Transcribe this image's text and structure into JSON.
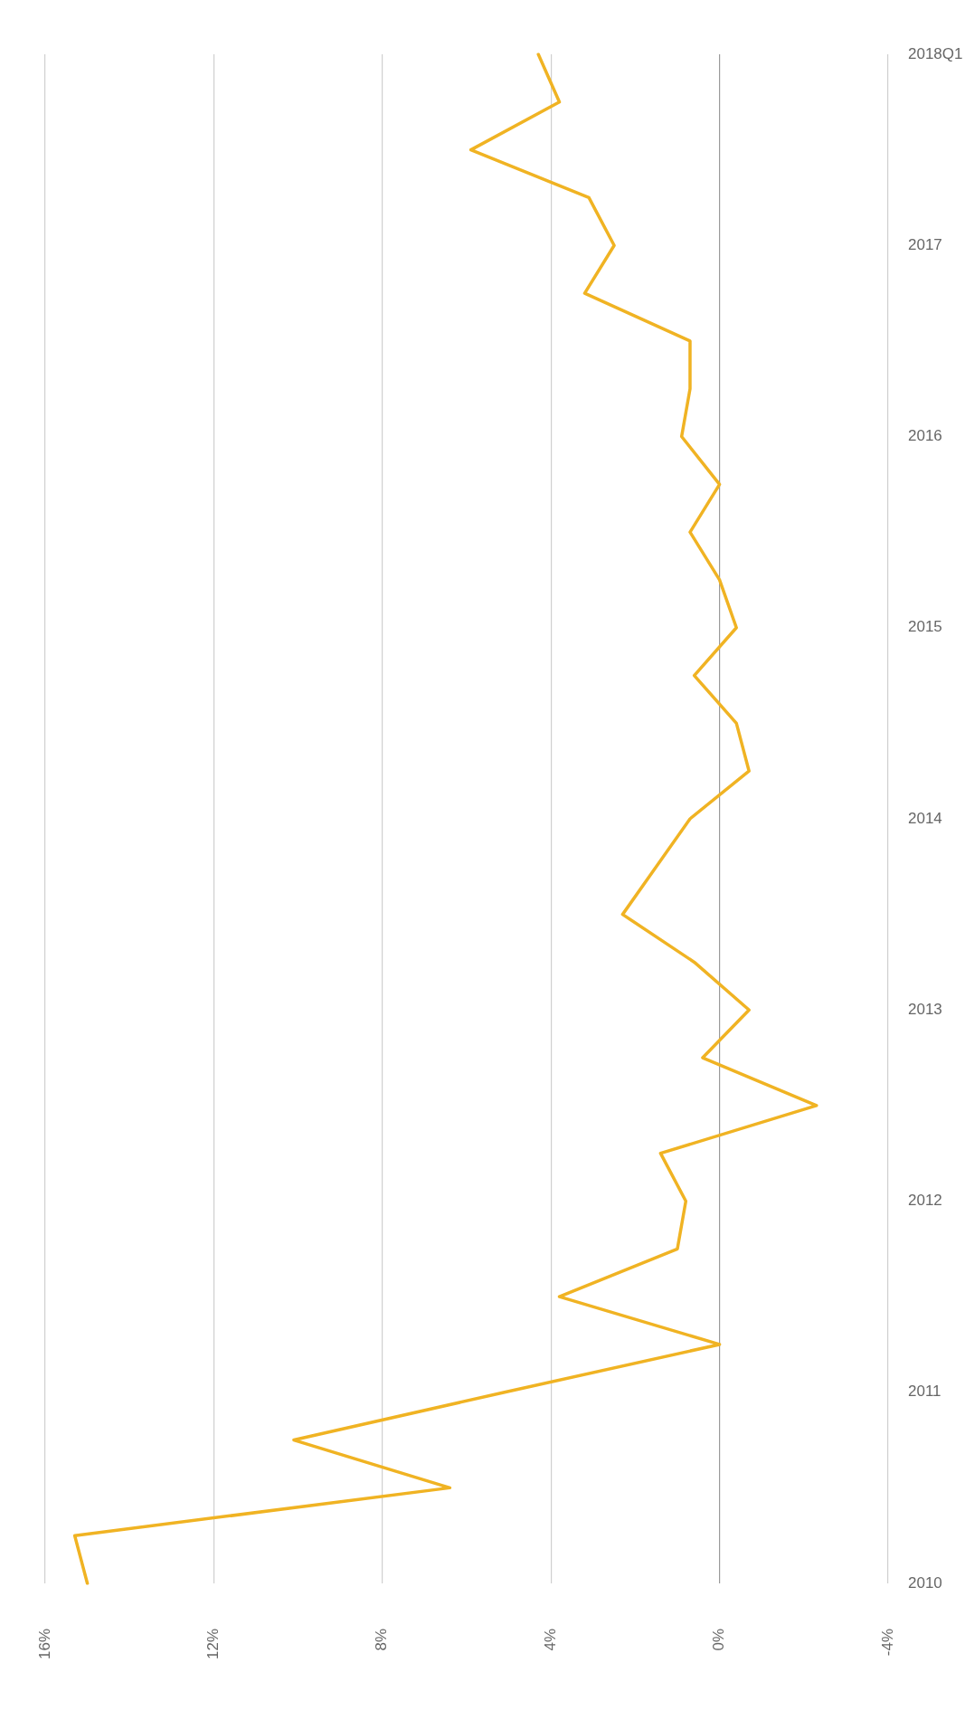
{
  "chart_data": {
    "type": "line",
    "categories": [
      "2018Q1",
      null,
      null,
      null,
      "2017",
      null,
      null,
      null,
      "2016",
      null,
      null,
      null,
      "2015",
      null,
      null,
      null,
      "2014",
      null,
      null,
      null,
      "2013",
      null,
      null,
      null,
      "2012",
      null,
      null,
      null,
      "2011",
      null,
      null,
      null,
      "2010"
    ],
    "series": [
      {
        "color": "#f0b323",
        "values": [
          4.3,
          3.8,
          5.9,
          3.1,
          2.5,
          3.2,
          0.7,
          0.7,
          0.9,
          0.0,
          0.7,
          0.0,
          -0.4,
          0.6,
          -0.4,
          -0.7,
          0.7,
          1.5,
          2.3,
          0.6,
          -0.7,
          0.4,
          -2.3,
          1.4,
          0.8,
          1.0,
          3.8,
          0.0,
          5.1,
          10.1,
          6.4,
          15.3,
          15.0
        ]
      }
    ],
    "orientation": "horizontal",
    "xlim": [
      16,
      -4
    ],
    "xticks": [
      {
        "value": 16,
        "label": "16%"
      },
      {
        "value": 12,
        "label": "12%"
      },
      {
        "value": 8,
        "label": "8%"
      },
      {
        "value": 4,
        "label": "4%"
      },
      {
        "value": 0,
        "label": "0%"
      },
      {
        "value": -4,
        "label": "-4%"
      }
    ],
    "grid": "x",
    "legend": false,
    "marker": "none",
    "line_style": "solid"
  }
}
